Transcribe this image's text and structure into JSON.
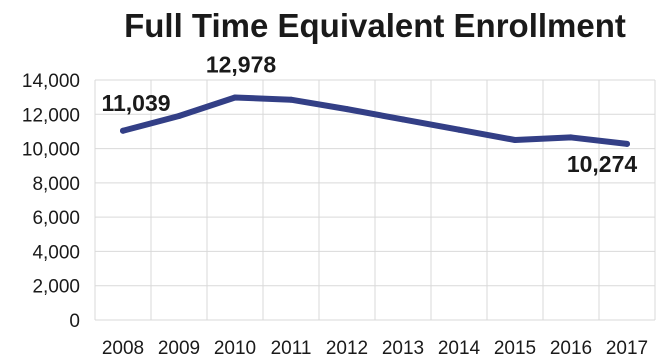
{
  "chart_data": {
    "type": "line",
    "title": "Full Time Equivalent Enrollment",
    "xlabel": "",
    "ylabel": "",
    "x": [
      "2008",
      "2009",
      "2010",
      "2011",
      "2012",
      "2013",
      "2014",
      "2015",
      "2016",
      "2017"
    ],
    "series": [
      {
        "values": [
          11039,
          11900,
          12978,
          12850,
          12300,
          11700,
          11100,
          10500,
          10650,
          10274
        ]
      }
    ],
    "ylim": [
      0,
      14000
    ],
    "yticks": [
      "0",
      "2,000",
      "4,000",
      "6,000",
      "8,000",
      "10,000",
      "12,000",
      "14,000"
    ],
    "data_labels": [
      {
        "index": 0,
        "text": "11,039"
      },
      {
        "index": 2,
        "text": "12,978"
      },
      {
        "index": 9,
        "text": "10,274"
      }
    ],
    "grid": true,
    "legend": "none",
    "colors": {
      "series": "#333f86",
      "grid": "#d9d9d9",
      "text": "#1a1a1a"
    }
  }
}
